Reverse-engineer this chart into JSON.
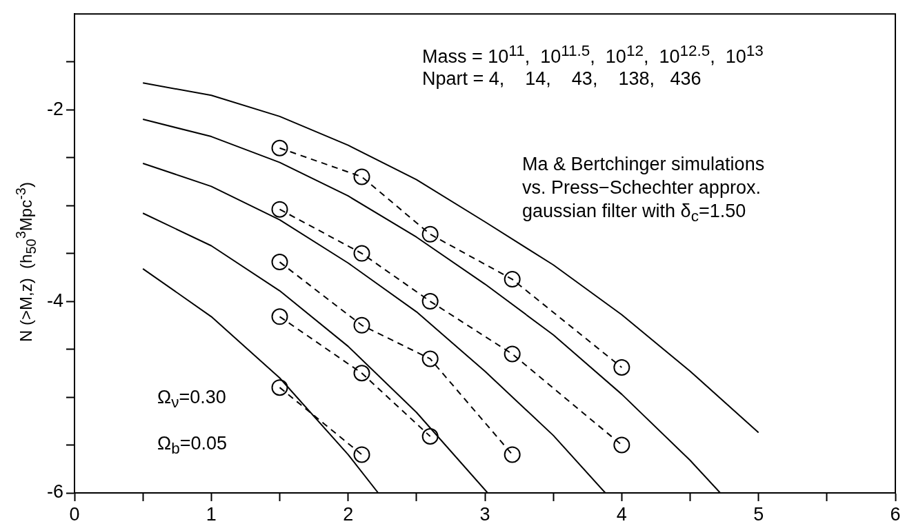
{
  "chart_data": {
    "type": "line",
    "ylabel": "N (>M,z)  (h$_{50}$$^{3}$Mpc$^{-3}$)",
    "annotations": [
      "Mass = 10$^{11}$,  10$^{11.5}$,  10$^{12}$,  10$^{12.5}$,  10$^{13}$",
      "Npart = 4,    14,    43,    138,   436",
      "Ma & Bertchinger simulations",
      "vs. Press−Schechter approx.",
      "gaussian filter with δ$_{c}$=1.50",
      "Ω$_{ν}$=0.30",
      "Ω$_{b}$=0.05"
    ],
    "xlim": [
      0,
      6
    ],
    "ylim": [
      -6,
      -1
    ],
    "xticks": [
      0,
      {
        "value": 0.5,
        "label": null
      },
      1,
      {
        "value": 1.5,
        "label": null
      },
      2,
      {
        "value": 2.5,
        "label": null
      },
      3,
      {
        "value": 3.5,
        "label": null
      },
      4,
      {
        "value": 4.5,
        "label": null
      },
      5,
      {
        "value": 5.5,
        "label": null
      },
      6
    ],
    "yticks": [
      -6,
      {
        "value": -5.5,
        "label": null
      },
      {
        "value": -5,
        "label": null
      },
      {
        "value": -4.5,
        "label": null
      },
      -4,
      {
        "value": -3.5,
        "label": null
      },
      {
        "value": -3,
        "label": null
      },
      {
        "value": -2.5,
        "label": null
      },
      -2,
      {
        "value": -1.5,
        "label": null
      }
    ],
    "grid": false,
    "legend": false,
    "series": [
      {
        "type": "line",
        "color": "#000000",
        "marker": "none",
        "line_style": "solid",
        "x": [
          0.5,
          1,
          1.5,
          2,
          2.5,
          3,
          3.5,
          4,
          4.5,
          5
        ],
        "values": [
          -1.72,
          -1.85,
          -2.07,
          -2.37,
          -2.73,
          -3.17,
          -3.62,
          -4.14,
          -4.73,
          -5.37
        ]
      },
      {
        "type": "line",
        "color": "#000000",
        "marker": "none",
        "line_style": "solid",
        "x": [
          0.5,
          1,
          1.5,
          2,
          2.5,
          3,
          3.5,
          4,
          4.5,
          4.72
        ],
        "values": [
          -2.1,
          -2.28,
          -2.55,
          -2.9,
          -3.33,
          -3.82,
          -4.35,
          -4.97,
          -5.66,
          -6
        ]
      },
      {
        "type": "line",
        "color": "#000000",
        "marker": "none",
        "line_style": "solid",
        "x": [
          0.5,
          1,
          1.5,
          2,
          2.5,
          3,
          3.5,
          3.88
        ],
        "values": [
          -2.56,
          -2.8,
          -3.15,
          -3.6,
          -4.11,
          -4.73,
          -5.4,
          -6
        ]
      },
      {
        "type": "line",
        "color": "#000000",
        "marker": "none",
        "line_style": "solid",
        "x": [
          0.5,
          1,
          1.5,
          2,
          2.5,
          3.02
        ],
        "values": [
          -3.08,
          -3.42,
          -3.89,
          -4.47,
          -5.16,
          -6
        ]
      },
      {
        "type": "line",
        "color": "#000000",
        "marker": "none",
        "line_style": "solid",
        "x": [
          0.5,
          1,
          1.5,
          2,
          2.22
        ],
        "values": [
          -3.66,
          -4.16,
          -4.8,
          -5.6,
          -6
        ]
      },
      {
        "type": "line",
        "color": "#000000",
        "marker": "circle",
        "line_style": "dashed",
        "x": [
          1.5,
          2.1,
          2.6,
          3.2,
          4
        ],
        "values": [
          -2.4,
          -2.7,
          -3.3,
          -3.77,
          -4.69
        ]
      },
      {
        "type": "line",
        "color": "#000000",
        "marker": "circle",
        "line_style": "dashed",
        "x": [
          1.5,
          2.1,
          2.6,
          3.2,
          4
        ],
        "values": [
          -3.04,
          -3.5,
          -4.0,
          -4.55,
          -5.5
        ]
      },
      {
        "type": "line",
        "color": "#000000",
        "marker": "circle",
        "line_style": "dashed",
        "x": [
          1.5,
          2.1,
          2.6,
          3.2
        ],
        "values": [
          -3.59,
          -4.25,
          -4.6,
          -5.6
        ]
      },
      {
        "type": "line",
        "color": "#000000",
        "marker": "circle",
        "line_style": "dashed",
        "x": [
          1.5,
          2.1,
          2.6
        ],
        "values": [
          -4.16,
          -4.75,
          -5.41
        ]
      },
      {
        "type": "line",
        "color": "#000000",
        "marker": "circle",
        "line_style": "dashed",
        "x": [
          1.5,
          2.1
        ],
        "values": [
          -4.9,
          -5.6
        ]
      }
    ]
  }
}
